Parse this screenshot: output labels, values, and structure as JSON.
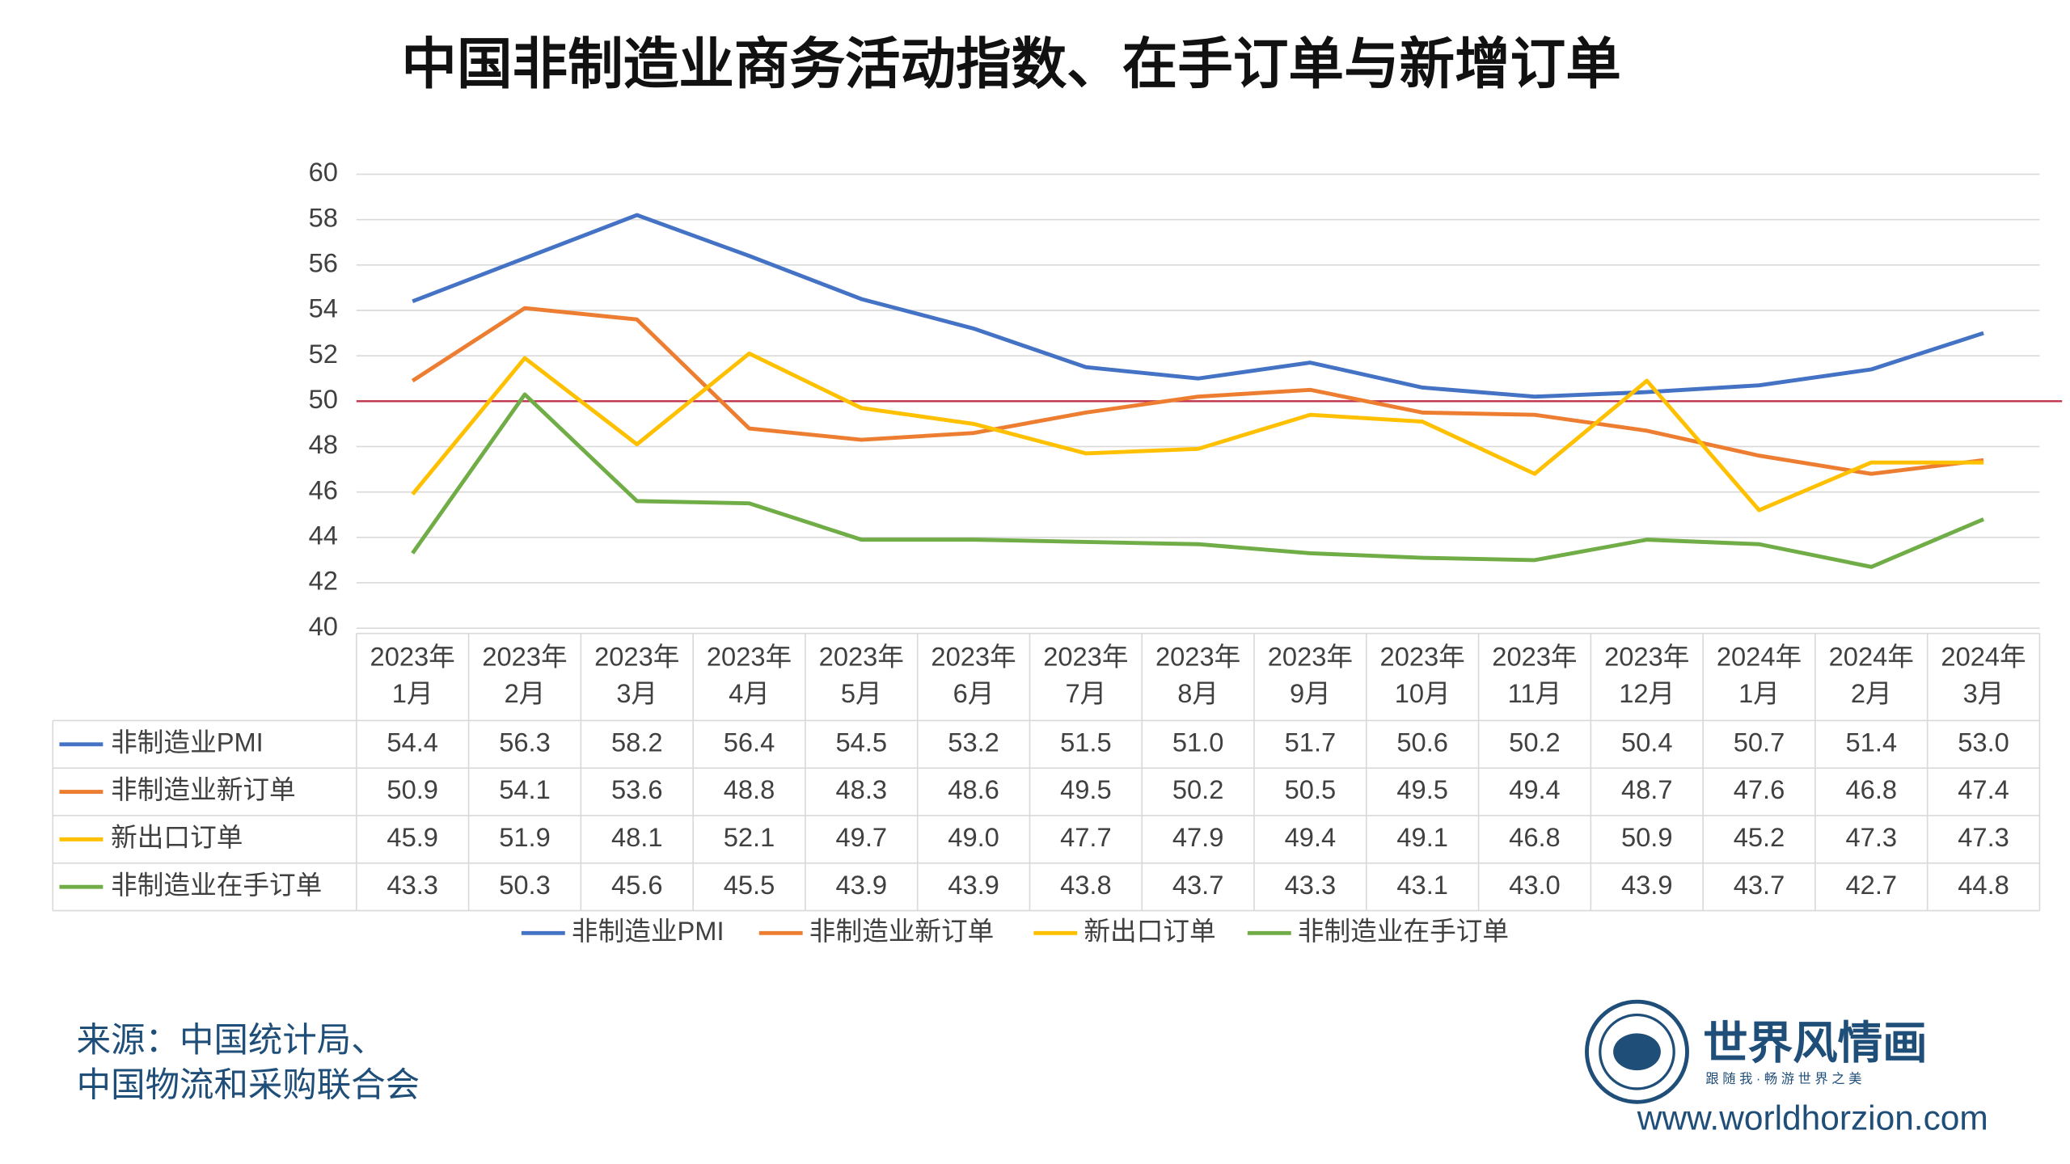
{
  "chart_data": {
    "type": "line",
    "title": "中国非制造业商务活动指数、在手订单与新增订单",
    "categories": [
      [
        "2023年",
        "1月"
      ],
      [
        "2023年",
        "2月"
      ],
      [
        "2023年",
        "3月"
      ],
      [
        "2023年",
        "4月"
      ],
      [
        "2023年",
        "5月"
      ],
      [
        "2023年",
        "6月"
      ],
      [
        "2023年",
        "7月"
      ],
      [
        "2023年",
        "8月"
      ],
      [
        "2023年",
        "9月"
      ],
      [
        "2023年",
        "10月"
      ],
      [
        "2023年",
        "11月"
      ],
      [
        "2023年",
        "12月"
      ],
      [
        "2024年",
        "1月"
      ],
      [
        "2024年",
        "2月"
      ],
      [
        "2024年",
        "3月"
      ]
    ],
    "series": [
      {
        "name": "非制造业PMI",
        "color": "#4472c4",
        "values": [
          54.4,
          56.3,
          58.2,
          56.4,
          54.5,
          53.2,
          51.5,
          51.0,
          51.7,
          50.6,
          50.2,
          50.4,
          50.7,
          51.4,
          53.0
        ],
        "value_labels": [
          "54.4",
          "56.3",
          "58.2",
          "56.4",
          "54.5",
          "53.2",
          "51.5",
          "51.0",
          "51.7",
          "50.6",
          "50.2",
          "50.4",
          "50.7",
          "51.4",
          "53.0"
        ]
      },
      {
        "name": "非制造业新订单",
        "color": "#ed7d31",
        "values": [
          50.9,
          54.1,
          53.6,
          48.8,
          48.3,
          48.6,
          49.5,
          50.2,
          50.5,
          49.5,
          49.4,
          48.7,
          47.6,
          46.8,
          47.4
        ],
        "value_labels": [
          "50.9",
          "54.1",
          "53.6",
          "48.8",
          "48.3",
          "48.6",
          "49.5",
          "50.2",
          "50.5",
          "49.5",
          "49.4",
          "48.7",
          "47.6",
          "46.8",
          "47.4"
        ]
      },
      {
        "name": "新出口订单",
        "color": "#ffc000",
        "values": [
          45.9,
          51.9,
          48.1,
          52.1,
          49.7,
          49.0,
          47.7,
          47.9,
          49.4,
          49.1,
          46.8,
          50.9,
          45.2,
          47.3,
          47.3
        ],
        "value_labels": [
          "45.9",
          "51.9",
          "48.1",
          "52.1",
          "49.7",
          "49.0",
          "47.7",
          "47.9",
          "49.4",
          "49.1",
          "46.8",
          "50.9",
          "45.2",
          "47.3",
          "47.3"
        ]
      },
      {
        "name": "非制造业在手订单",
        "color": "#70ad47",
        "values": [
          43.3,
          50.3,
          45.6,
          45.5,
          43.9,
          43.9,
          43.8,
          43.7,
          43.3,
          43.1,
          43.0,
          43.9,
          43.7,
          42.7,
          44.8
        ],
        "value_labels": [
          "43.3",
          "50.3",
          "45.6",
          "45.5",
          "43.9",
          "43.9",
          "43.8",
          "43.7",
          "43.3",
          "43.1",
          "43.0",
          "43.9",
          "43.7",
          "42.7",
          "44.8"
        ]
      }
    ],
    "ylim": [
      40,
      60
    ],
    "yticks": [
      40,
      42,
      44,
      46,
      48,
      50,
      52,
      54,
      56,
      58,
      60
    ],
    "grid": true,
    "reference_line": {
      "value": 50,
      "color": "#c0314b"
    },
    "legend": "bottom",
    "source": [
      "来源：中国统计局、",
      "中国物流和采购联合会"
    ],
    "logo": {
      "name": "世界风情画",
      "slogan": "跟 随 我 · 畅 游 世 界 之 美",
      "url": "www.worldhorzion.com"
    }
  }
}
